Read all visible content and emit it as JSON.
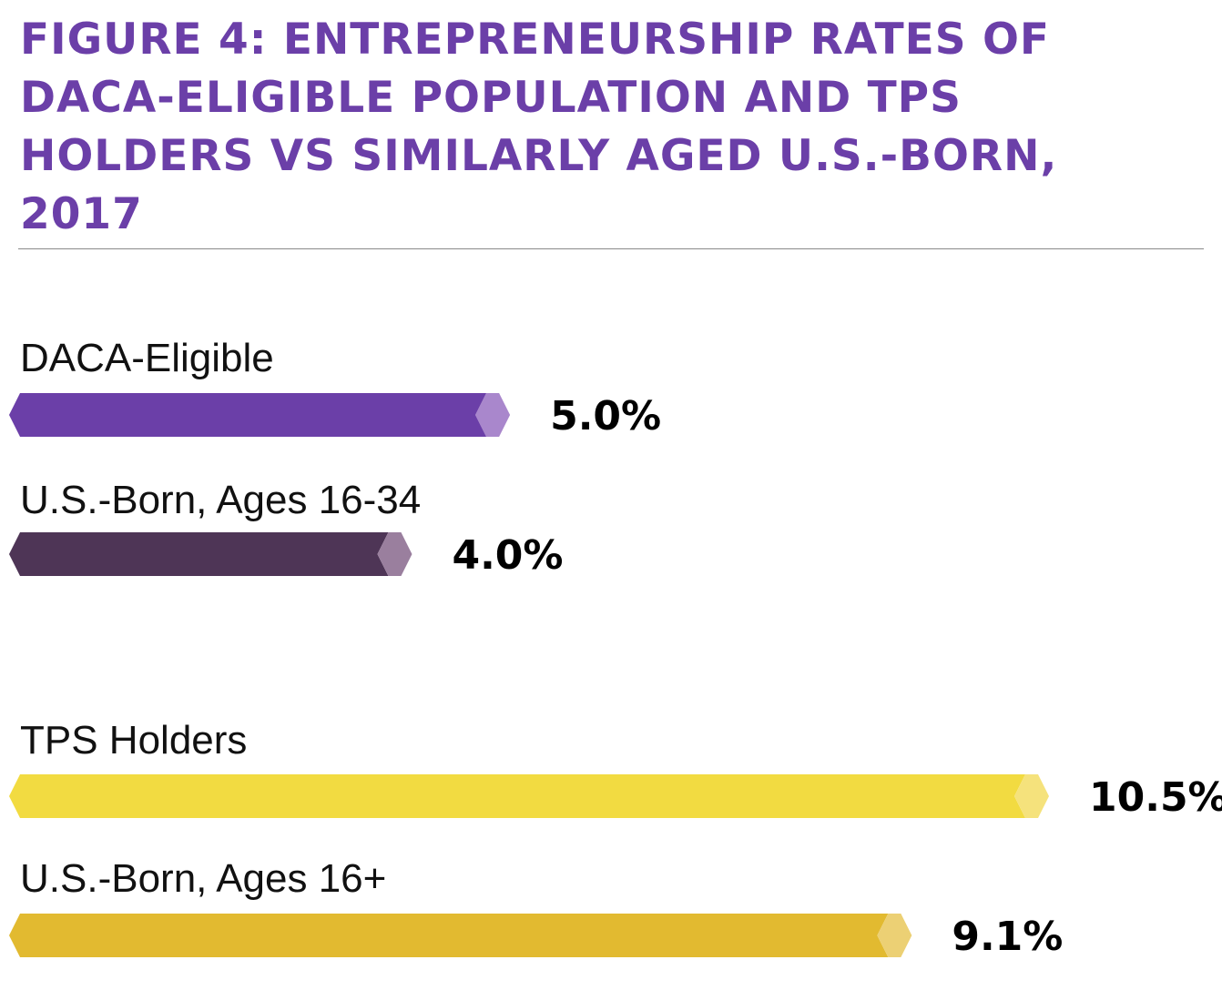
{
  "chart_data": {
    "type": "bar",
    "title": "FIGURE 4: ENTREPRENEURSHIP RATES OF DACA-ELIGIBLE POPULATION AND TPS HOLDERS VS SIMILARLY AGED U.S.-BORN, 2017",
    "orientation": "horizontal",
    "categories": [
      "DACA-Eligible",
      "U.S.-Born, Ages 16-34",
      "TPS Holders",
      "U.S.-Born, Ages 16+"
    ],
    "values": [
      5.0,
      4.0,
      10.5,
      9.1
    ],
    "value_labels": [
      "5.0%",
      "4.0%",
      "10.5%",
      "9.1%"
    ],
    "unit": "%",
    "xlim": [
      0,
      10.5
    ],
    "grid": false,
    "legend": "none",
    "groups": [
      {
        "categories": [
          "DACA-Eligible",
          "U.S.-Born, Ages 16-34"
        ]
      },
      {
        "categories": [
          "TPS Holders",
          "U.S.-Born, Ages 16+"
        ]
      }
    ],
    "colors": {
      "title": "#6b3fa8",
      "bars": [
        "#6b3fa8",
        "#4e3556",
        "#f2db41",
        "#e2ba30"
      ],
      "tips": [
        "#a987cc",
        "#9a7f9e",
        "#f5e27c",
        "#ecd074"
      ]
    }
  }
}
